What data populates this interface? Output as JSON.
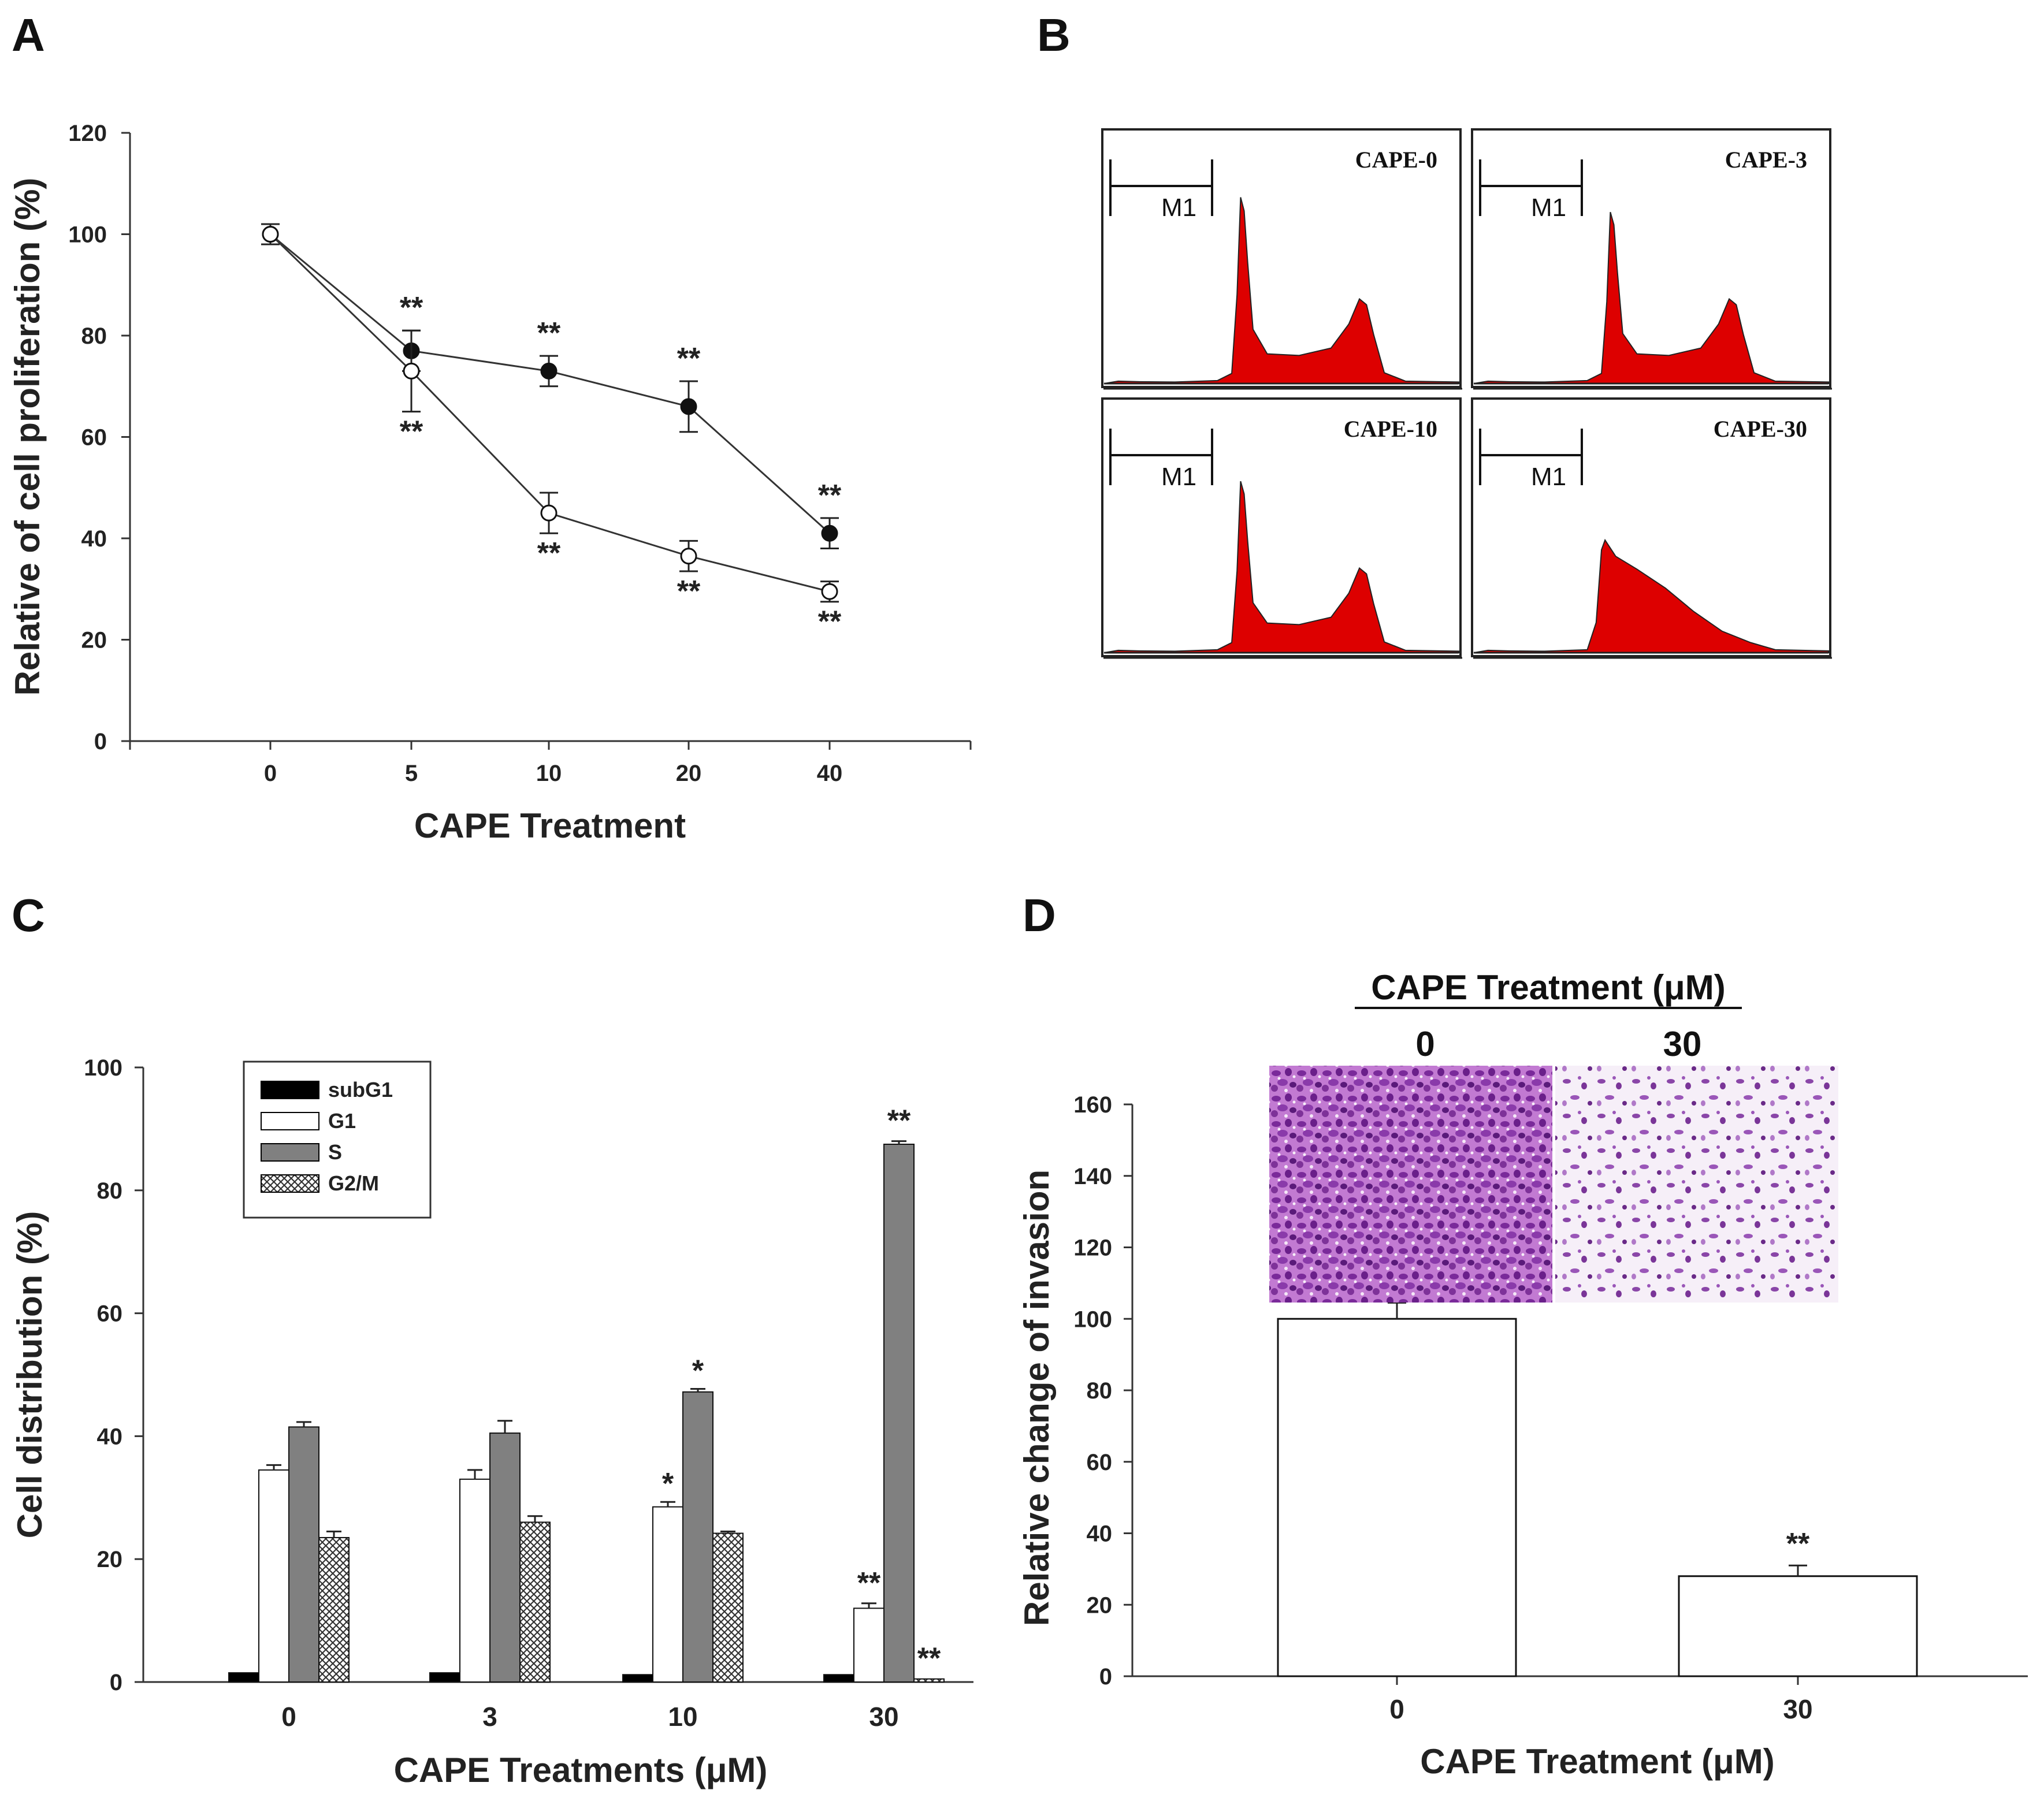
{
  "panels": {
    "A": {
      "letter": "A"
    },
    "B": {
      "letter": "B"
    },
    "C": {
      "letter": "C"
    },
    "D": {
      "letter": "D"
    }
  },
  "chart_data": [
    {
      "id": "A",
      "type": "line",
      "xlabel": "CAPE Treatment",
      "ylabel": "Relative of cell proliferation (%)",
      "categories": [
        "0",
        "5",
        "10",
        "20",
        "40"
      ],
      "ylim": [
        0,
        120
      ],
      "yticks": [
        "0",
        "20",
        "40",
        "60",
        "80",
        "100",
        "120"
      ],
      "series": [
        {
          "name": "filled",
          "marker": "filled-circle",
          "values": [
            100,
            77,
            73,
            66,
            41
          ],
          "errors": [
            2,
            4,
            3,
            5,
            3
          ],
          "stars": [
            "",
            "**",
            "**",
            "**",
            "**"
          ]
        },
        {
          "name": "open",
          "marker": "open-circle",
          "values": [
            100,
            73,
            45,
            36.5,
            29.5
          ],
          "errors": [
            2,
            8,
            4,
            3,
            2
          ],
          "stars": [
            "",
            "**",
            "**",
            "**",
            "**"
          ]
        }
      ]
    },
    {
      "id": "B",
      "type": "histogram",
      "color": "#dd0000",
      "gate_label": "M1",
      "histograms": [
        {
          "title": "CAPE-0"
        },
        {
          "title": "CAPE-3"
        },
        {
          "title": "CAPE-10"
        },
        {
          "title": "CAPE-30"
        }
      ]
    },
    {
      "id": "C",
      "type": "bar",
      "xlabel": "CAPE Treatments (μM)",
      "ylabel": "Cell distribution (%)",
      "categories": [
        "0",
        "3",
        "10",
        "30"
      ],
      "ylim": [
        0,
        100
      ],
      "yticks": [
        "0",
        "20",
        "40",
        "60",
        "80",
        "100"
      ],
      "series": [
        {
          "name": "subG1",
          "legend": "subG1",
          "fill": "#000000",
          "values": [
            1.5,
            1.5,
            1.2,
            1.2
          ],
          "errors": [
            0,
            0,
            0,
            0
          ],
          "stars": [
            "",
            "",
            "",
            ""
          ]
        },
        {
          "name": "G1",
          "legend": "G1",
          "fill": "#ffffff",
          "values": [
            34.5,
            33,
            28.5,
            12
          ],
          "errors": [
            0.8,
            1.5,
            0.8,
            0.8
          ],
          "stars": [
            "",
            "",
            "*",
            "**"
          ]
        },
        {
          "name": "S",
          "legend": "S",
          "fill": "#808080",
          "values": [
            41.5,
            40.5,
            47.2,
            87.5
          ],
          "errors": [
            0.8,
            2,
            0.5,
            0.5
          ],
          "stars": [
            "",
            "",
            "*",
            "**"
          ]
        },
        {
          "name": "G2/M",
          "legend": "G2/M",
          "fill": "pattern",
          "values": [
            23.5,
            26,
            24.2,
            0.5
          ],
          "errors": [
            1,
            1,
            0.3,
            0
          ],
          "stars": [
            "",
            "",
            "",
            "**"
          ]
        }
      ]
    },
    {
      "id": "D",
      "type": "bar",
      "xlabel": "CAPE Treatment (μM)",
      "ylabel": "Relative change of invasion",
      "categories": [
        "0",
        "30"
      ],
      "ylim": [
        0,
        160
      ],
      "yticks": [
        "0",
        "20",
        "40",
        "60",
        "80",
        "100",
        "120",
        "140",
        "160"
      ],
      "values": [
        100,
        28
      ],
      "errors": [
        4.5,
        3
      ],
      "stars": [
        "",
        "**"
      ],
      "inset_title": "CAPE Treatment (μM)",
      "inset_labels": [
        "0",
        "30"
      ]
    }
  ]
}
